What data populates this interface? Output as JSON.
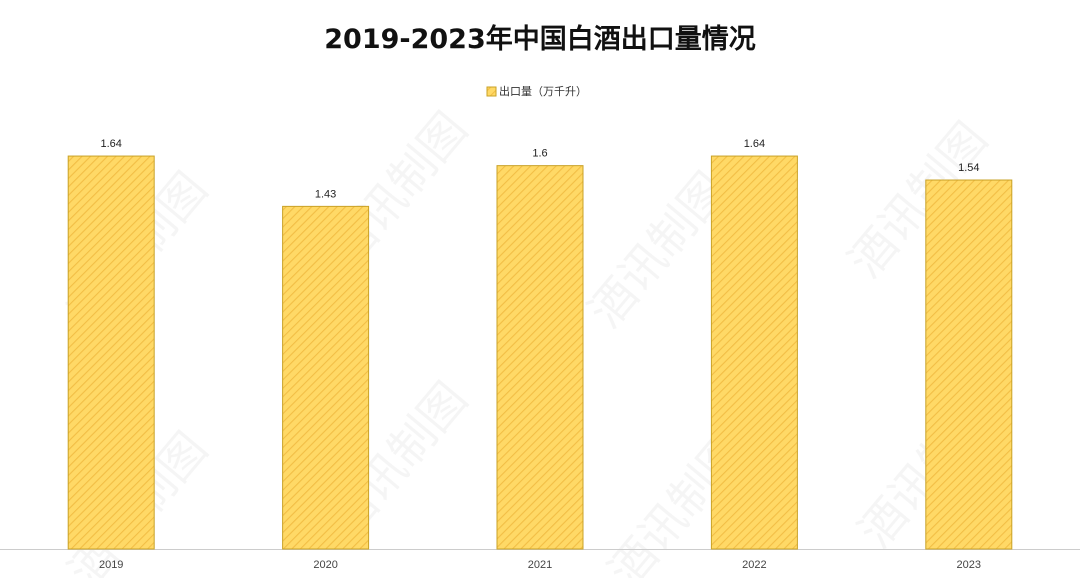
{
  "chart_data": {
    "type": "bar",
    "title": "2019-2023年中国白酒出口量情况",
    "categories": [
      "2019",
      "2020",
      "2021",
      "2022",
      "2023"
    ],
    "series": [
      {
        "name": "出口量（万千升）",
        "values": [
          1.64,
          1.43,
          1.6,
          1.64,
          1.54
        ]
      }
    ],
    "ylim": [
      0,
      2
    ],
    "grid": false,
    "legend_position": "top-center",
    "colors": {
      "bar_fill": "#FFD966",
      "bar_stripe": "#F2BE45",
      "bar_stroke": "#C9A227",
      "axis": "#CCCCCC"
    }
  },
  "watermark_text": "酒讯制图"
}
